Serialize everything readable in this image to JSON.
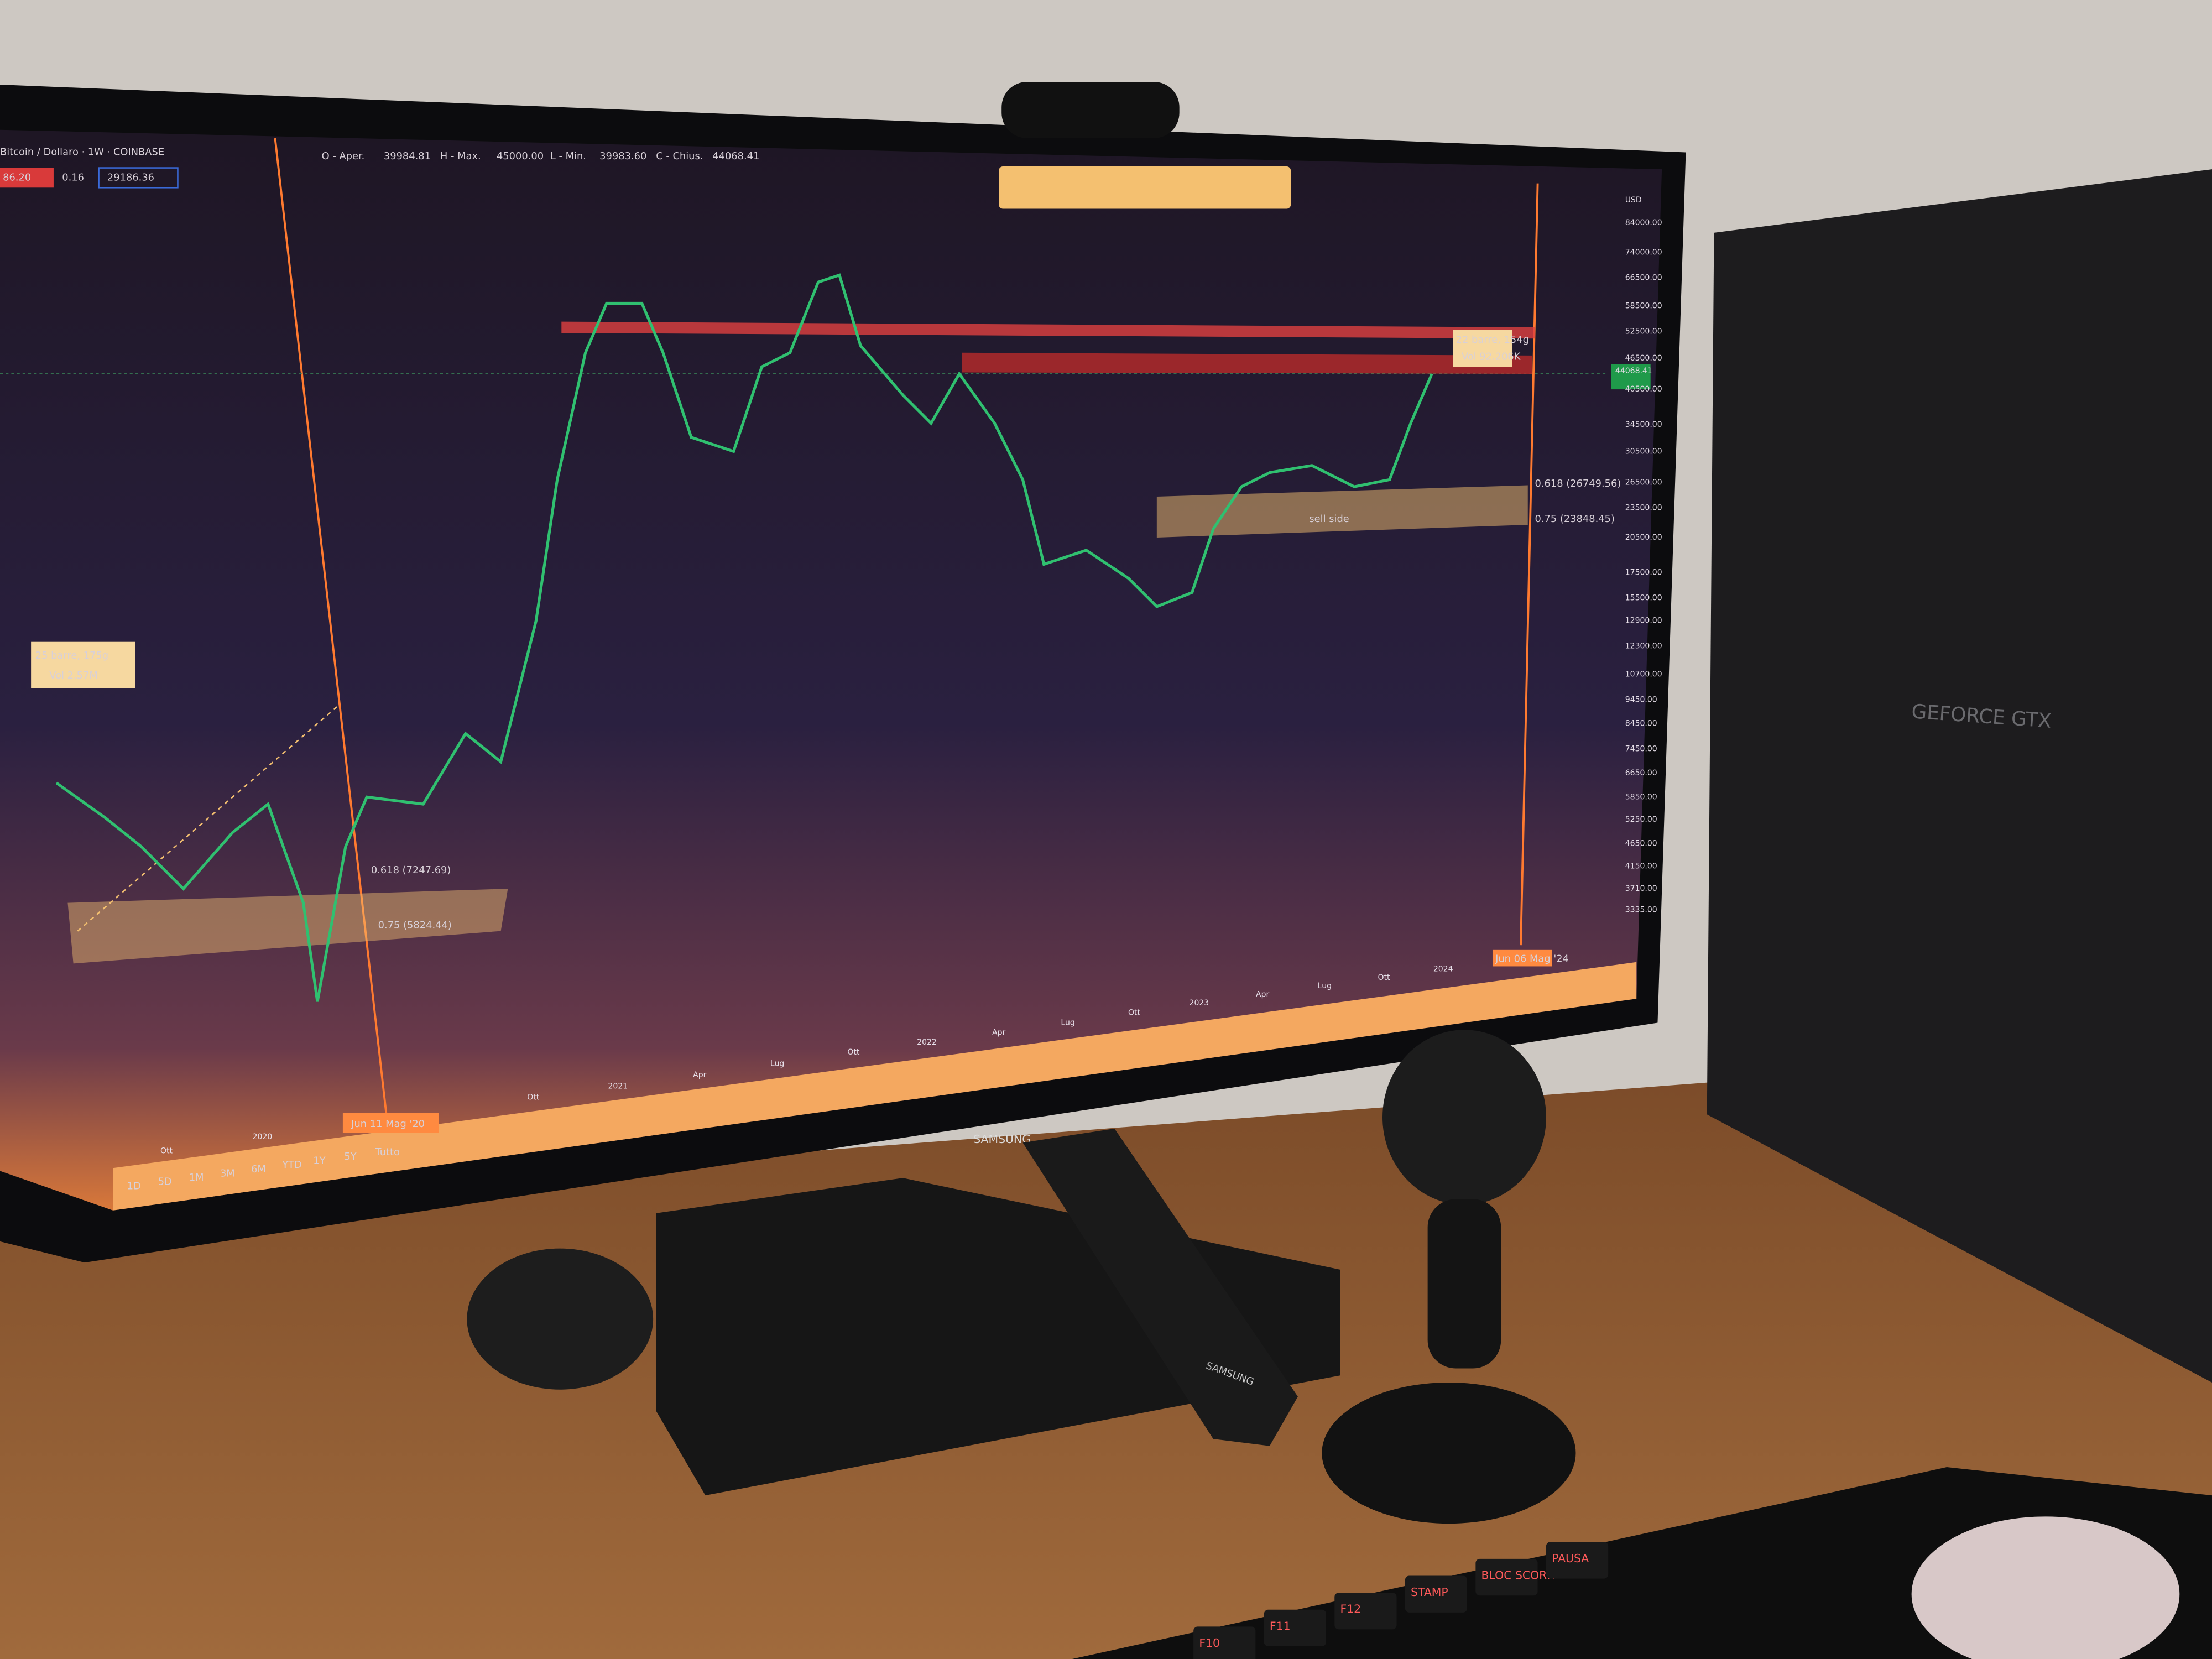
{
  "screen": {
    "header": {
      "symbol": "Bitcoin / Dollaro · 1W · COINBASE",
      "open_label": "O - Aper.",
      "open": "39984.81",
      "high_label": "H - Max.",
      "high": "45000.00",
      "low_label": "L - Min.",
      "low": "39983.60",
      "close_label": "C - Chius.",
      "close": "44068.41",
      "sell_price": "86.20",
      "spread": "0.16",
      "buy_price": "29186.36"
    },
    "price_axis": {
      "currency": "USD",
      "labels": [
        "84000.00",
        "74000.00",
        "66500.00",
        "58500.00",
        "52500.00",
        "46500.00",
        "40500.00",
        "34500.00",
        "30500.00",
        "26500.00",
        "23500.00",
        "20500.00",
        "17500.00",
        "15500.00",
        "12900.00",
        "12300.00",
        "10700.00",
        "9450.00",
        "8450.00",
        "7450.00",
        "6650.00",
        "5850.00",
        "5250.00",
        "4650.00",
        "4150.00",
        "3710.00",
        "3335.00"
      ],
      "last_price": "44068.41"
    },
    "time_axis": {
      "labels": [
        "Ott",
        "2020",
        "Ott",
        "2021",
        "Apr",
        "Lug",
        "Ott",
        "2022",
        "Apr",
        "Lug",
        "Ott",
        "2023",
        "Apr",
        "Lug",
        "Ott",
        "2024"
      ],
      "cursor_left": "Jun 11 Mag '20",
      "cursor_right": "Jun 06 Mag '24"
    },
    "periods": [
      "1D",
      "5D",
      "1M",
      "3M",
      "6M",
      "YTD",
      "1Y",
      "5Y",
      "Tutto"
    ],
    "annotations": {
      "range_left_bars": "25 barre, 175g",
      "range_left_vol": "Vol 2.57M",
      "range_right_bars": "22 barre, 154g",
      "range_right_vol": "Vol 92.206K",
      "fib_left_618": "0.618 (7247.69)",
      "fib_left_75": "0.75 (5824.44)",
      "fib_right_618": "0.618 (26749.56)",
      "fib_right_75": "0.75 (23848.45)",
      "zone": "sell side"
    }
  },
  "devices": {
    "monitor_brand": "SAMSUNG",
    "remote_brand": "SAMSUNG",
    "gpu": "GEFORCE GTX",
    "keys": [
      "F10",
      "F11",
      "F12",
      "STAMP",
      "BLOC SCORR",
      "PAUSA"
    ]
  }
}
